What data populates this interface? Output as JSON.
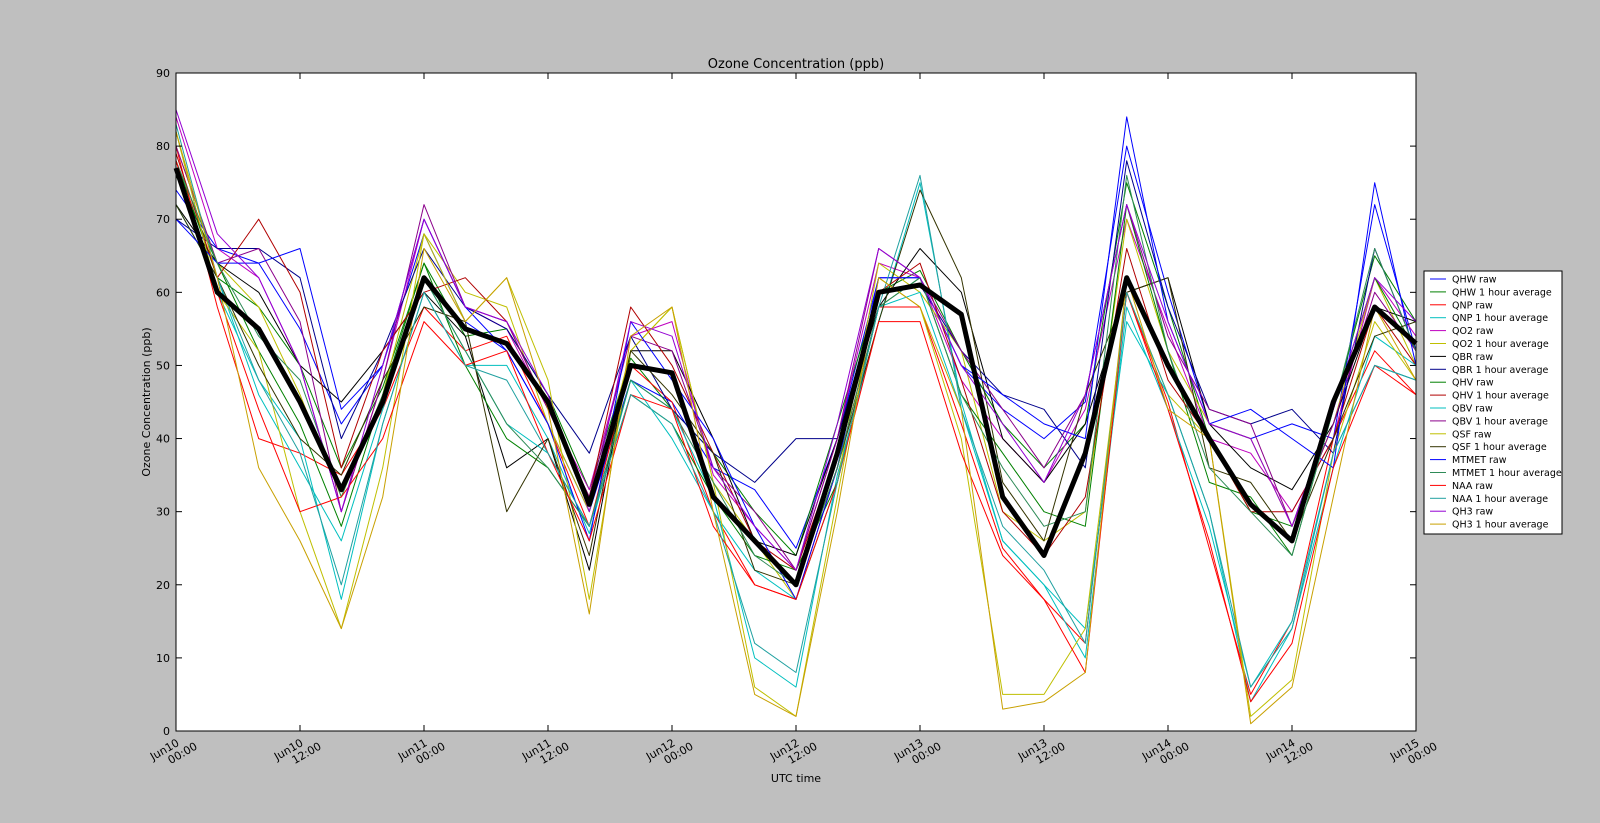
{
  "chart_data": {
    "type": "line",
    "title": "Ozone Concentration (ppb)",
    "xlabel": "UTC time",
    "ylabel": "Ozone Concentration (ppb)",
    "xlim": [
      0,
      120
    ],
    "xticks": [
      {
        "value": 0,
        "label": "Jun10\n00:00"
      },
      {
        "value": 12,
        "label": "Jun10\n12:00"
      },
      {
        "value": 24,
        "label": "Jun11\n00:00"
      },
      {
        "value": 36,
        "label": "Jun11\n12:00"
      },
      {
        "value": 48,
        "label": "Jun12\n00:00"
      },
      {
        "value": 60,
        "label": "Jun12\n12:00"
      },
      {
        "value": 72,
        "label": "Jun13\n00:00"
      },
      {
        "value": 84,
        "label": "Jun13\n12:00"
      },
      {
        "value": 96,
        "label": "Jun14\n00:00"
      },
      {
        "value": 108,
        "label": "Jun14\n12:00"
      },
      {
        "value": 120,
        "label": "Jun15\n00:00"
      }
    ],
    "ylim": [
      0,
      90
    ],
    "yticks": [
      0,
      10,
      20,
      30,
      40,
      50,
      60,
      70,
      80,
      90
    ],
    "legend": "right",
    "x": [
      0,
      4,
      8,
      12,
      16,
      20,
      24,
      28,
      32,
      36,
      40,
      44,
      48,
      52,
      56,
      60,
      64,
      68,
      72,
      76,
      80,
      84,
      88,
      92,
      96,
      100,
      104,
      108,
      112,
      116,
      120
    ],
    "series": [
      {
        "name": "QHW raw",
        "color": "#0000ff",
        "values": [
          74,
          66,
          64,
          55,
          42,
          50,
          68,
          56,
          52,
          42,
          30,
          48,
          45,
          36,
          33,
          25,
          40,
          62,
          62,
          50,
          44,
          40,
          45,
          80,
          60,
          42,
          40,
          42,
          40,
          72,
          52
        ]
      },
      {
        "name": "QHW 1 hour average",
        "color": "#008000",
        "values": [
          78,
          62,
          58,
          50,
          36,
          47,
          64,
          54,
          55,
          46,
          33,
          51,
          44,
          38,
          30,
          24,
          42,
          60,
          63,
          52,
          42,
          36,
          42,
          75,
          58,
          40,
          30,
          28,
          44,
          65,
          56
        ]
      },
      {
        "name": "QNP raw",
        "color": "#ff0000",
        "values": [
          80,
          58,
          40,
          38,
          35,
          44,
          58,
          52,
          54,
          42,
          28,
          50,
          45,
          30,
          20,
          18,
          36,
          58,
          58,
          42,
          25,
          18,
          12,
          60,
          45,
          25,
          5,
          15,
          40,
          52,
          46
        ]
      },
      {
        "name": "QNP 1 hour average",
        "color": "#00bfbf",
        "values": [
          82,
          60,
          48,
          40,
          18,
          42,
          60,
          50,
          50,
          40,
          27,
          48,
          44,
          32,
          10,
          6,
          35,
          56,
          75,
          45,
          26,
          20,
          10,
          58,
          44,
          28,
          6,
          15,
          38,
          50,
          48
        ]
      },
      {
        "name": "QO2 raw",
        "color": "#bf00bf",
        "values": [
          84,
          66,
          62,
          50,
          30,
          48,
          70,
          58,
          55,
          44,
          33,
          54,
          56,
          35,
          28,
          22,
          40,
          64,
          62,
          48,
          40,
          34,
          44,
          70,
          55,
          40,
          38,
          30,
          40,
          62,
          54
        ]
      },
      {
        "name": "QO2 1 hour average",
        "color": "#bfbf00",
        "values": [
          80,
          64,
          58,
          46,
          32,
          46,
          68,
          60,
          58,
          42,
          30,
          52,
          58,
          34,
          26,
          18,
          34,
          64,
          60,
          52,
          30,
          26,
          30,
          70,
          52,
          42,
          40,
          28,
          42,
          62,
          50
        ]
      },
      {
        "name": "QBR raw",
        "color": "#000000",
        "values": [
          72,
          64,
          60,
          50,
          45,
          52,
          60,
          54,
          36,
          40,
          22,
          52,
          52,
          40,
          26,
          24,
          40,
          58,
          66,
          60,
          40,
          34,
          42,
          60,
          62,
          42,
          36,
          33,
          42,
          58,
          56
        ]
      },
      {
        "name": "QBR 1 hour average",
        "color": "#00008b",
        "values": [
          70,
          66,
          66,
          62,
          40,
          52,
          66,
          58,
          55,
          46,
          38,
          54,
          44,
          38,
          34,
          40,
          40,
          60,
          61,
          52,
          46,
          44,
          36,
          78,
          58,
          44,
          42,
          44,
          38,
          66,
          52
        ]
      },
      {
        "name": "QHV raw",
        "color": "#008000",
        "values": [
          76,
          64,
          52,
          42,
          28,
          46,
          64,
          50,
          40,
          36,
          28,
          46,
          42,
          32,
          24,
          22,
          34,
          58,
          62,
          46,
          38,
          30,
          28,
          72,
          52,
          34,
          32,
          24,
          44,
          62,
          52
        ]
      },
      {
        "name": "QHV 1 hour average",
        "color": "#b00000",
        "values": [
          79,
          62,
          70,
          60,
          36,
          52,
          60,
          62,
          56,
          44,
          32,
          58,
          50,
          38,
          26,
          22,
          38,
          60,
          64,
          48,
          30,
          24,
          32,
          66,
          48,
          40,
          30,
          30,
          40,
          58,
          50
        ]
      },
      {
        "name": "QBV raw",
        "color": "#00bfbf",
        "values": [
          72,
          62,
          46,
          36,
          26,
          44,
          62,
          52,
          42,
          38,
          28,
          48,
          40,
          30,
          22,
          18,
          34,
          58,
          60,
          44,
          26,
          20,
          14,
          56,
          46,
          30,
          4,
          14,
          36,
          54,
          50
        ]
      },
      {
        "name": "QBV 1 hour average",
        "color": "#8b008b",
        "values": [
          80,
          64,
          66,
          56,
          30,
          48,
          72,
          58,
          56,
          44,
          32,
          54,
          52,
          36,
          30,
          22,
          40,
          66,
          62,
          52,
          44,
          36,
          46,
          72,
          54,
          44,
          42,
          28,
          42,
          60,
          52
        ]
      },
      {
        "name": "QSF raw",
        "color": "#bfbf00",
        "values": [
          82,
          60,
          52,
          30,
          14,
          36,
          68,
          56,
          62,
          48,
          18,
          52,
          58,
          34,
          6,
          2,
          32,
          62,
          58,
          40,
          5,
          5,
          14,
          60,
          46,
          40,
          2,
          7,
          38,
          56,
          48
        ]
      },
      {
        "name": "QSF 1 hour average",
        "color": "#333300",
        "values": [
          72,
          62,
          50,
          40,
          35,
          48,
          58,
          56,
          30,
          40,
          24,
          52,
          46,
          38,
          22,
          20,
          36,
          56,
          74,
          62,
          34,
          26,
          46,
          60,
          62,
          36,
          34,
          26,
          40,
          54,
          56
        ]
      },
      {
        "name": "MTMET raw",
        "color": "#0000ff",
        "values": [
          70,
          64,
          64,
          66,
          44,
          50,
          70,
          58,
          52,
          42,
          26,
          56,
          48,
          40,
          28,
          18,
          36,
          62,
          62,
          50,
          46,
          42,
          40,
          84,
          56,
          42,
          44,
          40,
          36,
          75,
          50
        ]
      },
      {
        "name": "MTMET 1 hour average",
        "color": "#2e8b57",
        "values": [
          78,
          64,
          54,
          48,
          32,
          46,
          62,
          52,
          42,
          36,
          28,
          48,
          44,
          34,
          24,
          20,
          36,
          58,
          62,
          46,
          36,
          28,
          30,
          76,
          52,
          36,
          30,
          24,
          44,
          66,
          52
        ]
      },
      {
        "name": "NAA raw",
        "color": "#ff0000",
        "values": [
          78,
          60,
          44,
          30,
          32,
          40,
          56,
          50,
          52,
          38,
          26,
          46,
          44,
          28,
          20,
          18,
          34,
          56,
          56,
          38,
          24,
          18,
          8,
          60,
          44,
          26,
          4,
          12,
          36,
          50,
          46
        ]
      },
      {
        "name": "NAA 1 hour average",
        "color": "#20a0a0",
        "values": [
          83,
          62,
          48,
          38,
          20,
          42,
          60,
          50,
          48,
          38,
          28,
          46,
          42,
          30,
          12,
          8,
          34,
          58,
          76,
          44,
          28,
          22,
          12,
          60,
          46,
          30,
          6,
          14,
          38,
          50,
          48
        ]
      },
      {
        "name": "QH3 raw",
        "color": "#9400d3",
        "values": [
          85,
          68,
          62,
          50,
          30,
          50,
          70,
          58,
          56,
          46,
          30,
          56,
          54,
          36,
          28,
          22,
          42,
          66,
          62,
          50,
          42,
          34,
          46,
          72,
          56,
          42,
          40,
          28,
          44,
          62,
          56
        ]
      },
      {
        "name": "QH3 1 hour average",
        "color": "#c8a000",
        "values": [
          82,
          62,
          36,
          26,
          14,
          32,
          66,
          56,
          62,
          44,
          16,
          54,
          58,
          30,
          5,
          2,
          30,
          62,
          58,
          44,
          3,
          4,
          8,
          62,
          44,
          40,
          1,
          6,
          32,
          58,
          48
        ]
      },
      {
        "color": "#000000",
        "width": 5,
        "values": [
          77,
          60,
          55,
          45,
          33,
          45,
          62,
          55,
          53,
          45,
          31,
          50,
          49,
          32,
          26,
          20,
          38,
          60,
          61,
          57,
          32,
          24,
          38,
          62,
          50,
          40,
          31,
          26,
          45,
          58,
          53
        ]
      }
    ]
  }
}
